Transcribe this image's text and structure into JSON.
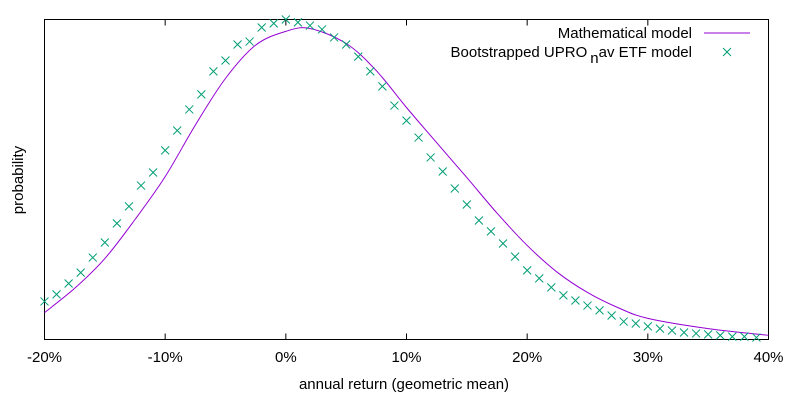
{
  "chart_data": {
    "type": "line",
    "title": "",
    "xlabel": "annual return (geometric mean)",
    "ylabel": "probability",
    "xlim": [
      -20,
      40
    ],
    "ylim": [
      0,
      1
    ],
    "x_ticks": [
      -20,
      -10,
      0,
      10,
      20,
      30,
      40
    ],
    "x_tick_labels": [
      "-20%",
      "-10%",
      "0%",
      "10%",
      "20%",
      "30%",
      "40%"
    ],
    "grid": false,
    "legend_position": "top-right",
    "series": [
      {
        "name": "Mathematical model",
        "style": "line",
        "color": "#9400d3",
        "x": [
          -20,
          -17.5,
          -15,
          -12.5,
          -10,
          -7.5,
          -5,
          -2.5,
          0,
          2,
          5,
          7.5,
          10,
          12.5,
          15,
          17.5,
          20,
          22.5,
          25,
          27.5,
          30,
          35,
          40
        ],
        "y": [
          0.084,
          0.16,
          0.253,
          0.375,
          0.509,
          0.67,
          0.816,
          0.92,
          0.963,
          0.972,
          0.925,
          0.84,
          0.725,
          0.615,
          0.506,
          0.395,
          0.294,
          0.21,
          0.147,
          0.1,
          0.066,
          0.034,
          0.013
        ]
      },
      {
        "name": "Bootstrapped UPRO",
        "name_subscript": "n",
        "name_suffix": "av ETF model",
        "style": "points",
        "marker": "x",
        "color": "#009e73",
        "x": [
          -20,
          -19,
          -18,
          -17,
          -16,
          -15,
          -14,
          -13,
          -12,
          -11,
          -10,
          -9,
          -8,
          -7,
          -6,
          -5,
          -4,
          -3,
          -2,
          -1,
          0,
          1,
          2,
          3,
          4,
          5,
          6,
          7,
          8,
          9,
          10,
          11,
          12,
          13,
          14,
          15,
          16,
          17,
          18,
          19,
          20,
          21,
          22,
          23,
          24,
          25,
          26,
          27,
          28,
          29,
          30,
          31,
          32,
          33,
          34,
          35,
          36,
          37,
          38,
          39
        ],
        "y": [
          0.119,
          0.141,
          0.175,
          0.209,
          0.256,
          0.303,
          0.363,
          0.416,
          0.481,
          0.522,
          0.591,
          0.653,
          0.719,
          0.766,
          0.838,
          0.872,
          0.922,
          0.931,
          0.975,
          0.988,
          1.0,
          0.991,
          0.981,
          0.969,
          0.944,
          0.922,
          0.884,
          0.838,
          0.791,
          0.731,
          0.684,
          0.631,
          0.569,
          0.525,
          0.472,
          0.422,
          0.372,
          0.338,
          0.3,
          0.259,
          0.216,
          0.191,
          0.163,
          0.138,
          0.122,
          0.106,
          0.091,
          0.075,
          0.056,
          0.05,
          0.041,
          0.034,
          0.028,
          0.022,
          0.019,
          0.016,
          0.013,
          0.009,
          0.009,
          0.006
        ]
      }
    ]
  }
}
